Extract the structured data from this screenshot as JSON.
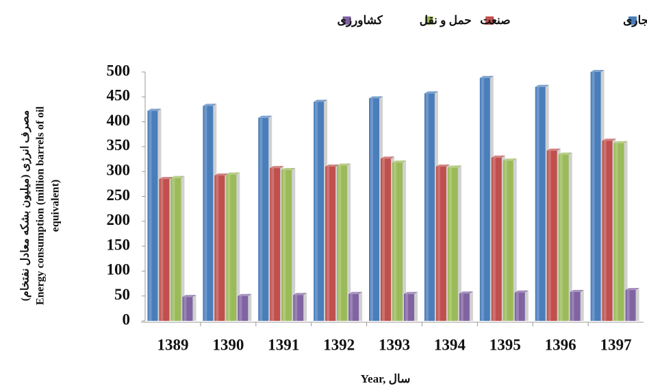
{
  "chart_data": {
    "type": "bar",
    "categories": [
      "1389",
      "1390",
      "1391",
      "1392",
      "1393",
      "1394",
      "1395",
      "1396",
      "1397"
    ],
    "series": [
      {
        "name": "خانگی، عمومی و تجاری",
        "color": "#4a7ebb",
        "values": [
          422,
          432,
          408,
          440,
          447,
          457,
          488,
          470,
          500
        ]
      },
      {
        "name": "صنعت",
        "color": "#c0504d",
        "values": [
          285,
          292,
          307,
          310,
          326,
          310,
          328,
          342,
          362
        ]
      },
      {
        "name": "حمل و نقل",
        "color": "#9bbb59",
        "values": [
          287,
          294,
          303,
          312,
          318,
          308,
          322,
          334,
          357
        ]
      },
      {
        "name": "کشاورزی",
        "color": "#8064a2",
        "values": [
          48,
          50,
          52,
          54,
          54,
          55,
          57,
          58,
          62
        ]
      }
    ],
    "ylim": [
      0,
      500
    ],
    "yticks": [
      0,
      50,
      100,
      150,
      200,
      250,
      300,
      350,
      400,
      450,
      500
    ],
    "x_label": "Year, سال",
    "y_label": [
      "مصرف انرژی (میلیون بشکه معادل نفتخام)",
      "Energy consumption (million barrels of oil",
      "equivalent)"
    ]
  }
}
